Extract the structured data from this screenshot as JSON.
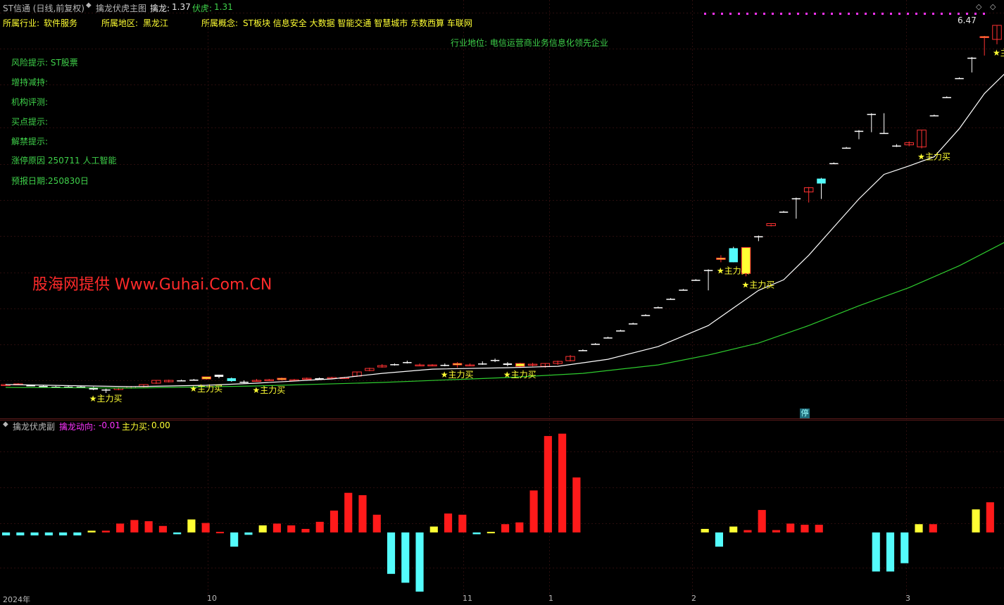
{
  "header": {
    "stock_name": "ST信通 (日线,前复权)",
    "indicator_name": "擒龙伏虎主图",
    "qinlong_label": "擒龙:",
    "qinlong_value": "1.37",
    "fuhu_label": "伏虎:",
    "fuhu_value": "1.31"
  },
  "info": {
    "industry_label": "所属行业:",
    "industry": "软件服务",
    "region_label": "所属地区:",
    "region": "黑龙江",
    "concept_label": "所属概念:",
    "concepts": "ST板块 信息安全 大数据 智能交通 智慧城市 东数西算 车联网",
    "position": "行业地位: 电信运营商业务信息化领先企业",
    "risk": "风险提示: ST股票",
    "holding": "增持减持:",
    "rating": "机构评测:",
    "buy_point": "买点提示:",
    "unlock": "解禁提示:",
    "limit_reason": "涨停原因 250711 人工智能",
    "report_date": "预报日期:250830日"
  },
  "watermark": "股海网提供 Www.Guhai.Com.CN",
  "price_high": "6.47",
  "stop_badge": "停",
  "sub_header": {
    "name": "擒龙伏虎副",
    "dir_label": "擒龙动向:",
    "dir_value": "-0.01",
    "main_buy_label": "主力买:",
    "main_buy_value": "0.00"
  },
  "x_labels": [
    "2024年",
    "10",
    "11",
    "1",
    "2",
    "3"
  ],
  "colors": {
    "up": "#ff3232",
    "down": "#54fcfc",
    "signal": "#ffff33",
    "ma_short": "#ffffff",
    "ma_long": "#2ecc2e",
    "bar_pos": "#ff1a1a",
    "bar_neg": "#54fcfc",
    "bar_sig": "#ffff33"
  },
  "chart_data": {
    "type": "candlestick",
    "candles": [
      [
        1.36,
        1.37,
        1.34,
        1.36,
        "u"
      ],
      [
        1.37,
        1.38,
        1.35,
        1.36,
        "u"
      ],
      [
        1.35,
        1.36,
        1.34,
        1.35,
        "d"
      ],
      [
        1.34,
        1.35,
        1.33,
        1.34,
        "d"
      ],
      [
        1.33,
        1.34,
        1.32,
        1.33,
        "d"
      ],
      [
        1.32,
        1.34,
        1.31,
        1.33,
        "d"
      ],
      [
        1.33,
        1.34,
        1.32,
        1.33,
        "d"
      ],
      [
        1.32,
        1.33,
        1.28,
        1.29,
        "d"
      ],
      [
        1.29,
        1.3,
        1.24,
        1.28,
        "d"
      ],
      [
        1.29,
        1.32,
        1.28,
        1.31,
        "u"
      ],
      [
        1.31,
        1.34,
        1.3,
        1.33,
        "u"
      ],
      [
        1.33,
        1.36,
        1.32,
        1.36,
        "u"
      ],
      [
        1.38,
        1.42,
        1.37,
        1.42,
        "u"
      ],
      [
        1.4,
        1.43,
        1.39,
        1.42,
        "u"
      ],
      [
        1.42,
        1.43,
        1.41,
        1.42,
        "d"
      ],
      [
        1.43,
        1.44,
        1.42,
        1.43,
        "d"
      ],
      [
        1.44,
        1.47,
        1.43,
        1.47,
        "s"
      ],
      [
        1.47,
        1.5,
        1.45,
        1.5,
        "d"
      ],
      [
        1.45,
        1.46,
        1.4,
        1.41,
        "d"
      ],
      [
        1.4,
        1.42,
        1.38,
        1.39,
        "d"
      ],
      [
        1.42,
        1.44,
        1.4,
        1.42,
        "u"
      ],
      [
        1.43,
        1.44,
        1.42,
        1.43,
        "u"
      ],
      [
        1.45,
        1.46,
        1.42,
        1.43,
        "s"
      ],
      [
        1.43,
        1.44,
        1.42,
        1.43,
        "u"
      ],
      [
        1.44,
        1.46,
        1.43,
        1.45,
        "u"
      ],
      [
        1.45,
        1.46,
        1.44,
        1.45,
        "d"
      ],
      [
        1.46,
        1.47,
        1.44,
        1.45,
        "u"
      ],
      [
        1.45,
        1.47,
        1.44,
        1.46,
        "u"
      ],
      [
        1.48,
        1.54,
        1.47,
        1.54,
        "u"
      ],
      [
        1.56,
        1.6,
        1.55,
        1.59,
        "u"
      ],
      [
        1.61,
        1.65,
        1.6,
        1.63,
        "u"
      ],
      [
        1.65,
        1.66,
        1.63,
        1.64,
        "d"
      ],
      [
        1.67,
        1.7,
        1.66,
        1.68,
        "d"
      ],
      [
        1.64,
        1.66,
        1.63,
        1.64,
        "u"
      ],
      [
        1.63,
        1.65,
        1.62,
        1.64,
        "u"
      ],
      [
        1.64,
        1.66,
        1.62,
        1.63,
        "d"
      ],
      [
        1.66,
        1.68,
        1.6,
        1.64,
        "s"
      ],
      [
        1.64,
        1.66,
        1.63,
        1.64,
        "u"
      ],
      [
        1.66,
        1.69,
        1.64,
        1.66,
        "d"
      ],
      [
        1.71,
        1.73,
        1.68,
        1.7,
        "d"
      ],
      [
        1.66,
        1.68,
        1.62,
        1.64,
        "d"
      ],
      [
        1.66,
        1.67,
        1.6,
        1.62,
        "s"
      ],
      [
        1.64,
        1.67,
        1.62,
        1.65,
        "u"
      ],
      [
        1.62,
        1.66,
        1.6,
        1.66,
        "u"
      ],
      [
        1.66,
        1.7,
        1.64,
        1.69,
        "u"
      ],
      [
        1.7,
        1.78,
        1.69,
        1.76,
        "u"
      ],
      [
        1.85,
        1.86,
        1.84,
        1.85,
        "d"
      ],
      [
        1.94,
        1.95,
        1.93,
        1.94,
        "d"
      ],
      [
        2.03,
        2.04,
        2.02,
        2.03,
        "d"
      ],
      [
        2.13,
        2.14,
        2.12,
        2.13,
        "d"
      ],
      [
        2.23,
        2.24,
        2.22,
        2.23,
        "d"
      ],
      [
        2.35,
        2.36,
        2.34,
        2.35,
        "d"
      ],
      [
        2.46,
        2.47,
        2.45,
        2.46,
        "d"
      ],
      [
        2.58,
        2.59,
        2.57,
        2.58,
        "d"
      ],
      [
        2.71,
        2.72,
        2.7,
        2.71,
        "d"
      ],
      [
        2.85,
        2.86,
        2.84,
        2.85,
        "d"
      ],
      [
        2.99,
        3.0,
        2.7,
        2.99,
        "d"
      ],
      [
        3.14,
        3.2,
        3.1,
        3.16,
        "s"
      ],
      [
        3.3,
        3.32,
        3.1,
        3.1,
        "d"
      ],
      [
        2.94,
        3.31,
        2.9,
        3.31,
        "s"
      ],
      [
        3.47,
        3.48,
        3.4,
        3.47,
        "d"
      ],
      [
        3.62,
        3.64,
        3.61,
        3.65,
        "u"
      ],
      [
        3.82,
        3.83,
        3.81,
        3.82,
        "d"
      ],
      [
        4.01,
        4.02,
        3.72,
        4.01,
        "d"
      ],
      [
        4.16,
        4.17,
        3.95,
        4.1,
        "u"
      ],
      [
        4.29,
        4.3,
        4.0,
        4.22,
        "d"
      ],
      [
        4.51,
        4.52,
        4.5,
        4.51,
        "d"
      ],
      [
        4.73,
        4.74,
        4.72,
        4.73,
        "d"
      ],
      [
        4.97,
        4.98,
        4.85,
        4.97,
        "d"
      ],
      [
        5.21,
        5.22,
        4.95,
        5.21,
        "d"
      ],
      [
        4.94,
        5.22,
        4.93,
        4.94,
        "d"
      ],
      [
        4.76,
        4.78,
        4.74,
        4.76,
        "d"
      ],
      [
        4.8,
        4.82,
        4.75,
        4.77,
        "u"
      ],
      [
        4.74,
        4.98,
        4.72,
        4.98,
        "u"
      ],
      [
        5.19,
        5.2,
        5.18,
        5.19,
        "d"
      ],
      [
        5.45,
        5.46,
        5.44,
        5.45,
        "d"
      ],
      [
        5.72,
        5.73,
        5.71,
        5.72,
        "d"
      ],
      [
        6.01,
        6.02,
        5.8,
        6.01,
        "d"
      ],
      [
        6.31,
        6.32,
        6.04,
        6.31,
        "s"
      ],
      [
        6.27,
        6.47,
        6.2,
        6.47,
        "u"
      ]
    ],
    "ma_short_points": [
      [
        0,
        1.36
      ],
      [
        10,
        1.33
      ],
      [
        16,
        1.35
      ],
      [
        20,
        1.38
      ],
      [
        26,
        1.44
      ],
      [
        30,
        1.52
      ],
      [
        34,
        1.58
      ],
      [
        40,
        1.6
      ],
      [
        44,
        1.62
      ],
      [
        48,
        1.72
      ],
      [
        52,
        1.9
      ],
      [
        56,
        2.2
      ],
      [
        58,
        2.45
      ],
      [
        60,
        2.7
      ],
      [
        62,
        2.85
      ],
      [
        64,
        3.2
      ],
      [
        66,
        3.6
      ],
      [
        68,
        4.0
      ],
      [
        70,
        4.35
      ],
      [
        72,
        4.47
      ],
      [
        74,
        4.6
      ],
      [
        76,
        5.0
      ],
      [
        78,
        5.5
      ],
      [
        80,
        5.85
      ]
    ],
    "ma_long_points": [
      [
        0,
        1.32
      ],
      [
        10,
        1.31
      ],
      [
        20,
        1.34
      ],
      [
        30,
        1.39
      ],
      [
        40,
        1.46
      ],
      [
        46,
        1.52
      ],
      [
        52,
        1.64
      ],
      [
        56,
        1.78
      ],
      [
        60,
        1.95
      ],
      [
        64,
        2.2
      ],
      [
        68,
        2.48
      ],
      [
        72,
        2.74
      ],
      [
        76,
        3.05
      ],
      [
        80,
        3.42
      ]
    ],
    "signals": [
      {
        "index": 7,
        "label": "★主力买"
      },
      {
        "index": 15,
        "label": "★主力买"
      },
      {
        "index": 20,
        "label": "★主力买"
      },
      {
        "index": 35,
        "label": "★主力买"
      },
      {
        "index": 40,
        "label": "★主力买"
      },
      {
        "index": 57,
        "label": "★主力买"
      },
      {
        "index": 59,
        "label": "★主力买"
      },
      {
        "index": 73,
        "label": "★主力买"
      },
      {
        "index": 79,
        "label": "★主力"
      }
    ],
    "sub_bars": [
      [
        -0.05,
        "n"
      ],
      [
        -0.05,
        "n"
      ],
      [
        -0.05,
        "n"
      ],
      [
        -0.05,
        "n"
      ],
      [
        -0.05,
        "n"
      ],
      [
        -0.05,
        "n"
      ],
      [
        0.03,
        "s"
      ],
      [
        0.03,
        "p"
      ],
      [
        0.15,
        "p"
      ],
      [
        0.21,
        "p"
      ],
      [
        0.19,
        "p"
      ],
      [
        0.11,
        "p"
      ],
      [
        -0.03,
        "n"
      ],
      [
        0.22,
        "s"
      ],
      [
        0.16,
        "p"
      ],
      [
        0.01,
        "p"
      ],
      [
        -0.24,
        "n"
      ],
      [
        -0.04,
        "n"
      ],
      [
        0.12,
        "s"
      ],
      [
        0.15,
        "p"
      ],
      [
        0.12,
        "p"
      ],
      [
        0.06,
        "p"
      ],
      [
        0.18,
        "p"
      ],
      [
        0.37,
        "p"
      ],
      [
        0.67,
        "p"
      ],
      [
        0.63,
        "p"
      ],
      [
        0.3,
        "p"
      ],
      [
        -0.7,
        "n"
      ],
      [
        -0.85,
        "n"
      ],
      [
        -1.0,
        "n"
      ],
      [
        0.1,
        "s"
      ],
      [
        0.32,
        "p"
      ],
      [
        0.3,
        "p"
      ],
      [
        -0.03,
        "n"
      ],
      [
        0.01,
        "s"
      ],
      [
        0.14,
        "p"
      ],
      [
        0.17,
        "p"
      ],
      [
        0.71,
        "p"
      ],
      [
        1.63,
        "p"
      ],
      [
        1.67,
        "p"
      ],
      [
        0.93,
        "p"
      ],
      [
        null,
        "x"
      ],
      [
        null,
        "x"
      ],
      [
        null,
        "x"
      ],
      [
        null,
        "x"
      ],
      [
        null,
        "x"
      ],
      [
        null,
        "x"
      ],
      [
        null,
        "x"
      ],
      [
        null,
        "x"
      ],
      [
        0.06,
        "s"
      ],
      [
        -0.24,
        "n"
      ],
      [
        0.1,
        "s"
      ],
      [
        0.04,
        "p"
      ],
      [
        0.38,
        "p"
      ],
      [
        0.04,
        "p"
      ],
      [
        0.15,
        "p"
      ],
      [
        0.13,
        "p"
      ],
      [
        0.13,
        "p"
      ],
      [
        null,
        "x"
      ],
      [
        null,
        "x"
      ],
      [
        null,
        "x"
      ],
      [
        -0.66,
        "n"
      ],
      [
        -0.66,
        "n"
      ],
      [
        -0.52,
        "n"
      ],
      [
        0.14,
        "s"
      ],
      [
        0.14,
        "p"
      ],
      [
        null,
        "x"
      ],
      [
        null,
        "x"
      ],
      [
        0.39,
        "s"
      ],
      [
        0.51,
        "p"
      ]
    ]
  }
}
